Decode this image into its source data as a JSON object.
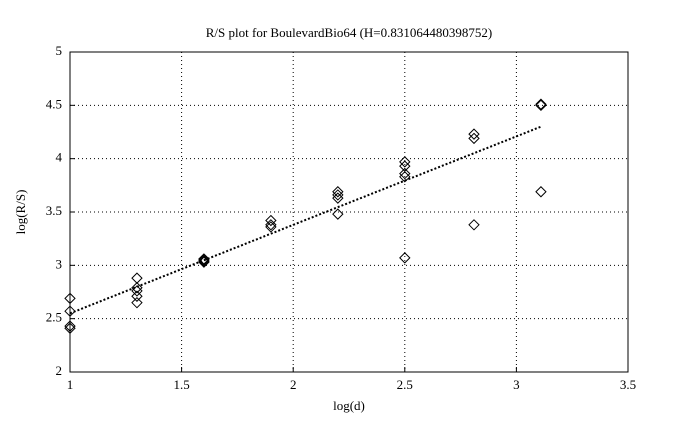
{
  "chart_data": {
    "type": "scatter",
    "title": "R/S plot for BoulevardBio64 (H=0.831064480398752)",
    "x_label": "log(d)",
    "y_label": "log(R/S)",
    "xlim": [
      1,
      3.5
    ],
    "xticks": [
      1,
      1.5,
      2,
      2.5,
      3,
      3.5
    ],
    "ylim": [
      2,
      5
    ],
    "yticks": [
      2,
      2.5,
      3,
      3.5,
      4,
      4.5,
      5
    ],
    "grid": true,
    "series": [
      {
        "type": "scatter",
        "color": "#000000",
        "x": [
          1,
          1,
          1,
          1,
          1.3,
          1.3,
          1.3,
          1.3,
          1.3,
          1.6,
          1.6,
          1.6,
          1.6,
          1.9,
          1.9,
          1.9,
          2.2,
          2.2,
          2.2,
          2.2,
          2.5,
          2.5,
          2.5,
          2.5,
          2.5,
          2.81,
          2.81,
          2.81,
          3.11,
          3.11,
          3.11
        ],
        "values": [
          2.69,
          2.57,
          2.43,
          2.41,
          2.88,
          2.79,
          2.76,
          2.71,
          2.65,
          3.06,
          3.05,
          3.04,
          3.03,
          3.42,
          3.38,
          3.36,
          3.69,
          3.66,
          3.63,
          3.48,
          3.97,
          3.93,
          3.86,
          3.83,
          3.07,
          4.23,
          4.19,
          3.38,
          4.51,
          4.5,
          3.69
        ]
      },
      {
        "type": "line",
        "color": "#000000",
        "style": "dotted",
        "x": [
          1,
          3.11
        ],
        "values": [
          2.55,
          4.3
        ]
      }
    ]
  }
}
